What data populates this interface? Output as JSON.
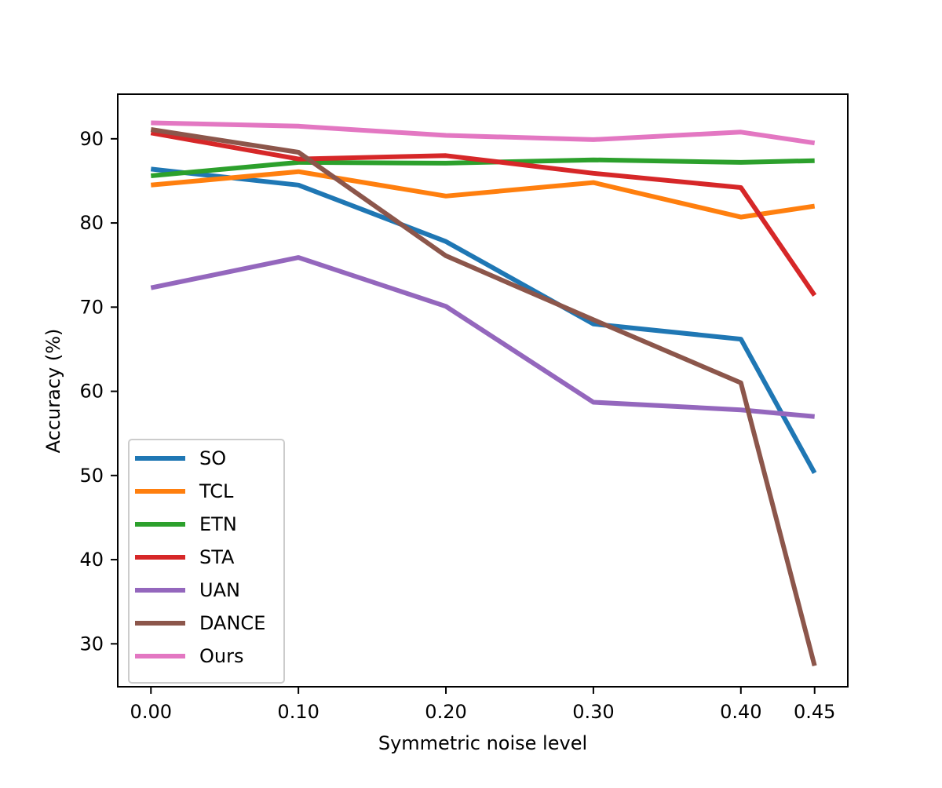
{
  "chart_data": {
    "type": "line",
    "title": "",
    "xlabel": "Symmetric noise level",
    "ylabel": "Accuracy (%)",
    "x": [
      0.0,
      0.1,
      0.2,
      0.3,
      0.4,
      0.45
    ],
    "x_tick_labels": [
      "0.00",
      "0.10",
      "0.20",
      "0.30",
      "0.40",
      "0.45"
    ],
    "y_ticks": [
      30,
      40,
      50,
      60,
      70,
      80,
      90
    ],
    "y_tick_labels": [
      "30",
      "40",
      "50",
      "60",
      "70",
      "80",
      "90"
    ],
    "xlim": [
      -0.0225,
      0.4725
    ],
    "ylim": [
      24.9,
      95.3
    ],
    "grid": false,
    "legend_position": "lower-left",
    "series": [
      {
        "name": "SO",
        "color": "#1f77b4",
        "values": [
          86.4,
          84.5,
          77.8,
          68.0,
          66.2,
          50.3
        ]
      },
      {
        "name": "TCL",
        "color": "#ff7f0e",
        "values": [
          84.5,
          86.1,
          83.2,
          84.8,
          80.7,
          82.0
        ]
      },
      {
        "name": "ETN",
        "color": "#2ca02c",
        "values": [
          85.6,
          87.2,
          87.1,
          87.5,
          87.2,
          87.4
        ]
      },
      {
        "name": "STA",
        "color": "#d62728",
        "values": [
          90.7,
          87.6,
          88.0,
          85.9,
          84.2,
          71.4
        ]
      },
      {
        "name": "UAN",
        "color": "#9467bd",
        "values": [
          72.3,
          75.9,
          70.1,
          58.7,
          57.8,
          57.0
        ]
      },
      {
        "name": "DANCE",
        "color": "#8c564b",
        "values": [
          91.1,
          88.4,
          76.1,
          68.5,
          61.0,
          27.4
        ]
      },
      {
        "name": "Ours",
        "color": "#e377c2",
        "values": [
          91.9,
          91.5,
          90.4,
          89.9,
          90.8,
          89.5
        ]
      }
    ]
  }
}
